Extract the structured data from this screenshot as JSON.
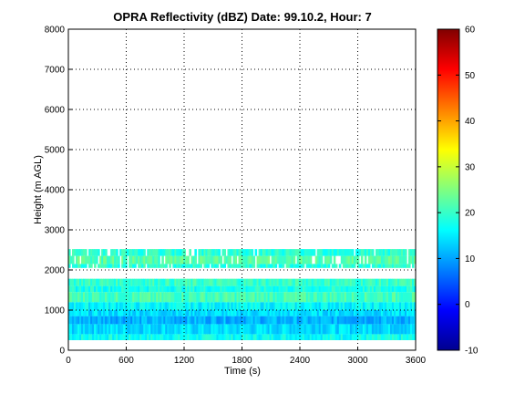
{
  "chart_data": {
    "type": "heatmap",
    "title": "OPRA Reflectivity (dBZ)  Date: 99.10.2, Hour: 7",
    "xlabel": "Time (s)",
    "ylabel": "Height (m AGL)",
    "xlim": [
      0,
      3600
    ],
    "ylim": [
      0,
      8000
    ],
    "xticks": [
      "0",
      "600",
      "1200",
      "1800",
      "2400",
      "3000",
      "3600"
    ],
    "yticks": [
      "0",
      "1000",
      "2000",
      "3000",
      "4000",
      "5000",
      "6000",
      "7000",
      "8000"
    ],
    "grid": true,
    "colormap": "jet",
    "colorbar": {
      "clim": [
        -10,
        60
      ],
      "ticks": [
        "-10",
        "0",
        "10",
        "20",
        "30",
        "40",
        "50",
        "60"
      ]
    },
    "layers": [
      {
        "y_range": [
          250,
          400
        ],
        "dbz": 17
      },
      {
        "y_range": [
          400,
          650
        ],
        "dbz": 14
      },
      {
        "y_range": [
          650,
          850
        ],
        "dbz": 11
      },
      {
        "y_range": [
          850,
          1000
        ],
        "dbz": 14
      },
      {
        "y_range": [
          1000,
          1200
        ],
        "dbz": 16
      },
      {
        "y_range": [
          1200,
          1450
        ],
        "dbz": 21
      },
      {
        "y_range": [
          1450,
          1600
        ],
        "dbz": 18
      },
      {
        "y_range": [
          1600,
          1780
        ],
        "dbz": 20
      },
      {
        "y_range": [
          2050,
          2150
        ],
        "dbz": 19
      },
      {
        "y_range": [
          2150,
          2350
        ],
        "dbz": 22
      },
      {
        "y_range": [
          2350,
          2520
        ],
        "dbz": 19
      }
    ]
  }
}
